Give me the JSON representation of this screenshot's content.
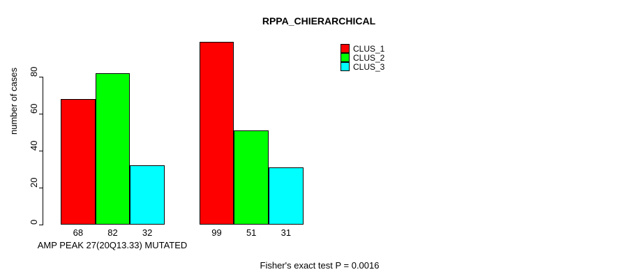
{
  "chart_data": {
    "type": "bar",
    "title": "RPPA_CHIERARCHICAL",
    "xlabel": "AMP PEAK 27(20Q13.33) MUTATED",
    "ylabel": "number of cases",
    "categories": [
      "",
      ""
    ],
    "series": [
      {
        "name": "CLUS_1",
        "color": "#ff0000",
        "values": [
          68,
          99
        ]
      },
      {
        "name": "CLUS_2",
        "color": "#00ff00",
        "values": [
          82,
          51
        ]
      },
      {
        "name": "CLUS_3",
        "color": "#00ffff",
        "values": [
          32,
          31
        ]
      }
    ],
    "bar_value_labels": [
      [
        68,
        82,
        32
      ],
      [
        99,
        51,
        31
      ]
    ],
    "yticks": [
      "0",
      "20",
      "40",
      "60",
      "80"
    ],
    "ylim": [
      0,
      80
    ],
    "grid": false,
    "bar_border_color": "#000000",
    "legend": {
      "position": "top-right",
      "entries": [
        {
          "label": "CLUS_1",
          "color": "#ff0000"
        },
        {
          "label": "CLUS_2",
          "color": "#00ff00"
        },
        {
          "label": "CLUS_3",
          "color": "#00ffff"
        }
      ]
    },
    "annotation": "Fisher's exact test P = 0.0016"
  }
}
